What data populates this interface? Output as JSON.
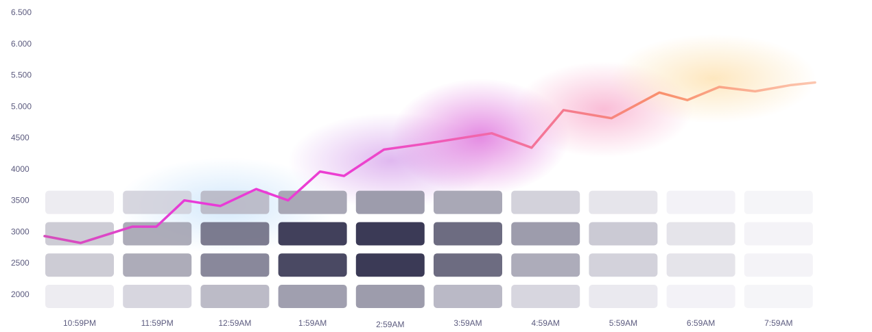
{
  "chart_data": {
    "type": "line",
    "title": "",
    "xlabel": "",
    "ylabel": "",
    "y_tick_labels": [
      "6.500",
      "6.000",
      "5.500",
      "5.000",
      "4500",
      "4000",
      "3500",
      "3000",
      "2500",
      "2000"
    ],
    "x_tick_labels": [
      "10:59PM",
      "11:59PM",
      "12:59AM",
      "1:59AM",
      "2:59AM",
      "3:59AM",
      "4:59AM",
      "5:59AM",
      "6:59AM",
      "7:59AM"
    ],
    "ylim": [
      2000,
      6500
    ],
    "grid": false,
    "legend": "none",
    "series": [
      {
        "x": [
          0,
          0.45,
          1.1,
          1.4,
          1.75,
          2.2,
          2.65,
          3.05,
          3.45,
          3.75,
          4.25,
          4.75,
          5.6,
          6.1,
          6.5,
          7.1,
          7.7,
          8.05,
          8.45,
          8.9,
          9.35,
          9.65
        ],
        "y": [
          2930,
          2820,
          3080,
          3080,
          3500,
          3410,
          3680,
          3500,
          3960,
          3890,
          4310,
          4400,
          4570,
          4340,
          4940,
          4810,
          5220,
          5100,
          5310,
          5240,
          5340,
          5380
        ]
      }
    ],
    "gradient_colors": [
      "#d44fba",
      "#e83ad8",
      "#ec3fd1",
      "#f26ea3",
      "#f9906d",
      "#fcc7b0"
    ],
    "heatmap": {
      "rows": [
        3500,
        3000,
        2500,
        2000
      ],
      "colors": {
        "dark": "#3b3a56",
        "light": "#eeedf3"
      },
      "intensity": [
        [
          0.05,
          0.18,
          0.3,
          0.4,
          0.45,
          0.4,
          0.18,
          0.08,
          0.0,
          0.0
        ],
        [
          0.28,
          0.45,
          0.7,
          1.0,
          1.0,
          0.75,
          0.5,
          0.25,
          0.1,
          0.0
        ],
        [
          0.28,
          0.45,
          0.62,
          0.95,
          1.0,
          0.75,
          0.4,
          0.2,
          0.1,
          0.0
        ],
        [
          0.05,
          0.18,
          0.32,
          0.45,
          0.45,
          0.3,
          0.15,
          0.05,
          0.0,
          0.0
        ]
      ]
    }
  }
}
